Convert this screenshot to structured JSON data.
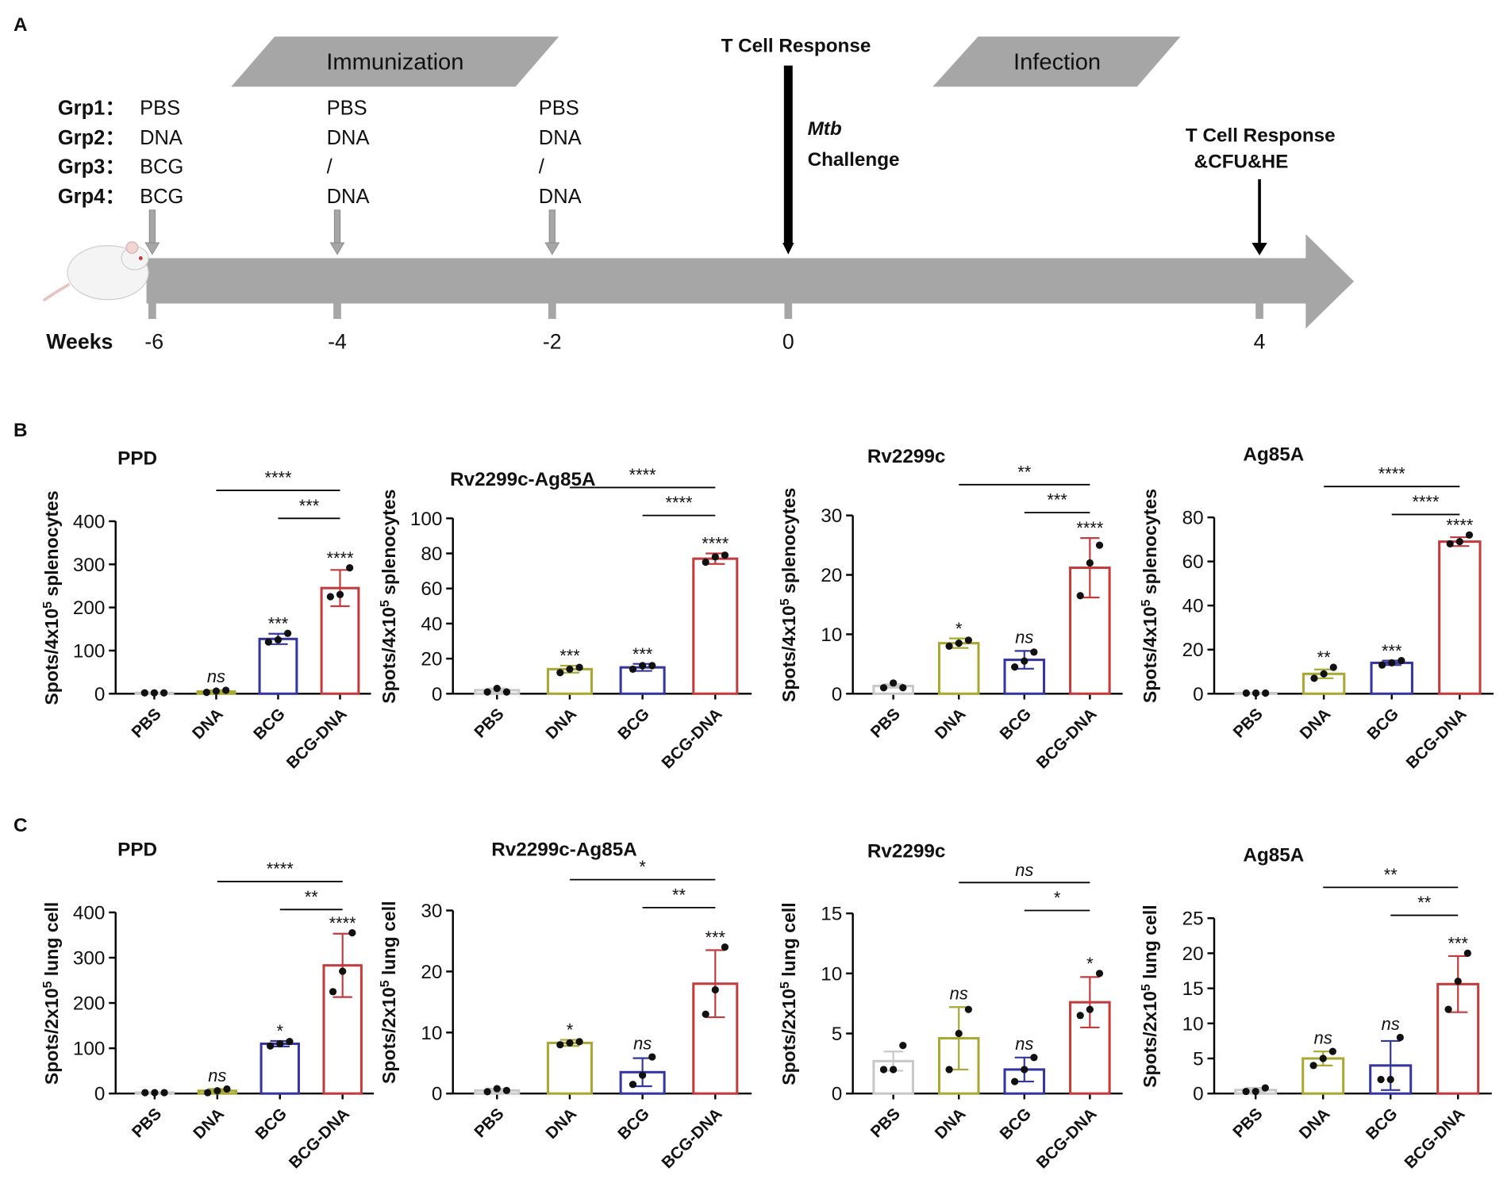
{
  "panel_labels": [
    "A",
    "B",
    "C"
  ],
  "timeline": {
    "phases": [
      "Immunization",
      "Infection"
    ],
    "groups": [
      [
        "Grp1：",
        "PBS",
        "PBS",
        "PBS"
      ],
      [
        "Grp2：",
        "DNA",
        "DNA",
        "DNA"
      ],
      [
        "Grp3：",
        "BCG",
        "/",
        "/"
      ],
      [
        "Grp4：",
        "BCG",
        "DNA",
        "DNA"
      ]
    ],
    "challenge": {
      "title": "T Cell Response",
      "agent": "Mtb",
      "action": "Challenge"
    },
    "endpoint": [
      "T Cell Response",
      "&CFU&HE"
    ],
    "axis_label": "Weeks",
    "weeks": [
      -6,
      -4,
      -2,
      0,
      4
    ]
  },
  "chart_data": [
    {
      "type": "bar",
      "title": "PPD",
      "ylabel": [
        "Spots/4x10",
        "5",
        " splenocytes"
      ],
      "categories": [
        "PBS",
        "DNA",
        "BCG",
        "BCG-DNA"
      ],
      "colors": [
        "#c8c8c8",
        "#a8a832",
        "#3535a0",
        "#c23b3d"
      ],
      "values": [
        2,
        5,
        127,
        245
      ],
      "errors": [
        1,
        3,
        12,
        42
      ],
      "points": [
        [
          2,
          2,
          2
        ],
        [
          3,
          6,
          8
        ],
        [
          120,
          125,
          140
        ],
        [
          225,
          230,
          292
        ]
      ],
      "significance": [
        null,
        "ns",
        "***",
        "****"
      ],
      "comparisons": [
        {
          "between": [
            "DNA",
            "BCG-DNA"
          ],
          "label": "****"
        },
        {
          "between": [
            "BCG",
            "BCG-DNA"
          ],
          "label": "***"
        }
      ],
      "ylim": [
        0,
        400
      ],
      "yticks": [
        0,
        100,
        200,
        300,
        400
      ]
    },
    {
      "type": "bar",
      "title": "Rv2299c-Ag85A",
      "ylabel": [
        "Spots/4x10",
        "5",
        " splenocytes"
      ],
      "categories": [
        "PBS",
        "DNA",
        "BCG",
        "BCG-DNA"
      ],
      "colors": [
        "#c8c8c8",
        "#a8a832",
        "#3535a0",
        "#c23b3d"
      ],
      "values": [
        2,
        14,
        15,
        77
      ],
      "errors": [
        1,
        2,
        2,
        3
      ],
      "points": [
        [
          1,
          3,
          1
        ],
        [
          12,
          14,
          15
        ],
        [
          14,
          16,
          16
        ],
        [
          75,
          78,
          79
        ]
      ],
      "significance": [
        null,
        "***",
        "***",
        "****"
      ],
      "comparisons": [
        {
          "between": [
            "DNA",
            "BCG-DNA"
          ],
          "label": "****"
        },
        {
          "between": [
            "BCG",
            "BCG-DNA"
          ],
          "label": "****"
        }
      ],
      "ylim": [
        0,
        100
      ],
      "yticks": [
        0,
        20,
        40,
        60,
        80,
        100
      ]
    },
    {
      "type": "bar",
      "title": "Rv2299c",
      "ylabel": [
        "Spots/4x10",
        "5",
        " splenocytes"
      ],
      "categories": [
        "PBS",
        "DNA",
        "BCG",
        "BCG-DNA"
      ],
      "colors": [
        "#c8c8c8",
        "#a8a832",
        "#3535a0",
        "#c23b3d"
      ],
      "values": [
        1.3,
        8.5,
        5.7,
        21.2
      ],
      "errors": [
        0.3,
        0.8,
        1.5,
        5
      ],
      "points": [
        [
          1,
          1.8,
          1
        ],
        [
          8,
          8.5,
          9
        ],
        [
          4.5,
          5.5,
          7
        ],
        [
          16.5,
          22,
          25
        ]
      ],
      "significance": [
        null,
        "*",
        "ns",
        "****"
      ],
      "comparisons": [
        {
          "between": [
            "DNA",
            "BCG-DNA"
          ],
          "label": "**"
        },
        {
          "between": [
            "BCG",
            "BCG-DNA"
          ],
          "label": "***"
        }
      ],
      "ylim": [
        0,
        30
      ],
      "yticks": [
        0,
        10,
        20,
        30
      ]
    },
    {
      "type": "bar",
      "title": "Ag85A",
      "ylabel": [
        "Spots/4x10",
        "5",
        " splenocytes"
      ],
      "categories": [
        "PBS",
        "DNA",
        "BCG",
        "BCG-DNA"
      ],
      "colors": [
        "#c8c8c8",
        "#a8a832",
        "#3535a0",
        "#c23b3d"
      ],
      "values": [
        0.3,
        9,
        14,
        69
      ],
      "errors": [
        0.2,
        2,
        1,
        2
      ],
      "points": [
        [
          0.3,
          0.3,
          0.3
        ],
        [
          7,
          9,
          12
        ],
        [
          13,
          14,
          15
        ],
        [
          68,
          69,
          72
        ]
      ],
      "significance": [
        null,
        "**",
        "***",
        "****"
      ],
      "comparisons": [
        {
          "between": [
            "DNA",
            "BCG-DNA"
          ],
          "label": "****"
        },
        {
          "between": [
            "BCG",
            "BCG-DNA"
          ],
          "label": "****"
        }
      ],
      "ylim": [
        0,
        80
      ],
      "yticks": [
        0,
        20,
        40,
        60,
        80
      ]
    },
    {
      "type": "bar",
      "title": "PPD",
      "ylabel": [
        "Spots/2x10",
        "5",
        " lung cell"
      ],
      "categories": [
        "PBS",
        "DNA",
        "BCG",
        "BCG-DNA"
      ],
      "colors": [
        "#c8c8c8",
        "#a8a832",
        "#3535a0",
        "#c23b3d"
      ],
      "values": [
        2,
        6,
        110,
        283
      ],
      "errors": [
        1,
        4,
        6,
        70
      ],
      "points": [
        [
          2,
          2,
          2
        ],
        [
          2,
          6,
          10
        ],
        [
          105,
          110,
          115
        ],
        [
          225,
          270,
          355
        ]
      ],
      "significance": [
        null,
        "ns",
        "*",
        "****"
      ],
      "comparisons": [
        {
          "between": [
            "DNA",
            "BCG-DNA"
          ],
          "label": "****"
        },
        {
          "between": [
            "BCG",
            "BCG-DNA"
          ],
          "label": "**"
        }
      ],
      "ylim": [
        0,
        400
      ],
      "yticks": [
        0,
        100,
        200,
        300,
        400
      ]
    },
    {
      "type": "bar",
      "title": "Rv2299c-Ag85A",
      "ylabel": [
        "Spots/2x10",
        "5",
        " lung cell"
      ],
      "categories": [
        "PBS",
        "DNA",
        "BCG",
        "BCG-DNA"
      ],
      "colors": [
        "#c8c8c8",
        "#a8a832",
        "#3535a0",
        "#c23b3d"
      ],
      "values": [
        0.5,
        8.3,
        3.5,
        18
      ],
      "errors": [
        0.3,
        0.5,
        2.3,
        5.5
      ],
      "points": [
        [
          0.3,
          0.8,
          0.5
        ],
        [
          8,
          8.3,
          8.5
        ],
        [
          1.5,
          3,
          6
        ],
        [
          13,
          17,
          24
        ]
      ],
      "significance": [
        null,
        "*",
        "ns",
        "***"
      ],
      "comparisons": [
        {
          "between": [
            "DNA",
            "BCG-DNA"
          ],
          "label": "*"
        },
        {
          "between": [
            "BCG",
            "BCG-DNA"
          ],
          "label": "**"
        }
      ],
      "ylim": [
        0,
        30
      ],
      "yticks": [
        0,
        10,
        20,
        30
      ]
    },
    {
      "type": "bar",
      "title": "Rv2299c",
      "ylabel": [
        "Spots/2x10",
        "5",
        " lung cell"
      ],
      "categories": [
        "PBS",
        "DNA",
        "BCG",
        "BCG-DNA"
      ],
      "colors": [
        "#c8c8c8",
        "#a8a832",
        "#3535a0",
        "#c23b3d"
      ],
      "values": [
        2.7,
        4.6,
        2.0,
        7.6
      ],
      "errors": [
        0.8,
        2.6,
        1,
        2.1
      ],
      "points": [
        [
          2,
          2,
          4
        ],
        [
          2,
          5,
          7
        ],
        [
          1,
          2,
          3
        ],
        [
          6.5,
          7,
          10
        ]
      ],
      "significance": [
        null,
        "ns",
        "ns",
        "*"
      ],
      "comparisons": [
        {
          "between": [
            "DNA",
            "BCG-DNA"
          ],
          "label": "ns"
        },
        {
          "between": [
            "BCG",
            "BCG-DNA"
          ],
          "label": "*"
        }
      ],
      "ylim": [
        0,
        15
      ],
      "yticks": [
        0,
        5,
        10,
        15
      ]
    },
    {
      "type": "bar",
      "title": "Ag85A",
      "ylabel": [
        "Spots/2x10",
        "5",
        " lung cell"
      ],
      "categories": [
        "PBS",
        "DNA",
        "BCG",
        "BCG-DNA"
      ],
      "colors": [
        "#c8c8c8",
        "#a8a832",
        "#3535a0",
        "#c23b3d"
      ],
      "values": [
        0.5,
        5,
        4,
        15.6
      ],
      "errors": [
        0.3,
        1,
        3.5,
        4
      ],
      "points": [
        [
          0.3,
          0.3,
          0.8
        ],
        [
          4,
          5,
          6
        ],
        [
          2,
          2,
          8
        ],
        [
          12,
          16,
          20
        ]
      ],
      "significance": [
        null,
        "ns",
        "ns",
        "***"
      ],
      "comparisons": [
        {
          "between": [
            "DNA",
            "BCG-DNA"
          ],
          "label": "**"
        },
        {
          "between": [
            "BCG",
            "BCG-DNA"
          ],
          "label": "**"
        }
      ],
      "ylim": [
        0,
        25
      ],
      "yticks": [
        0,
        5,
        10,
        15,
        20,
        25
      ]
    }
  ]
}
